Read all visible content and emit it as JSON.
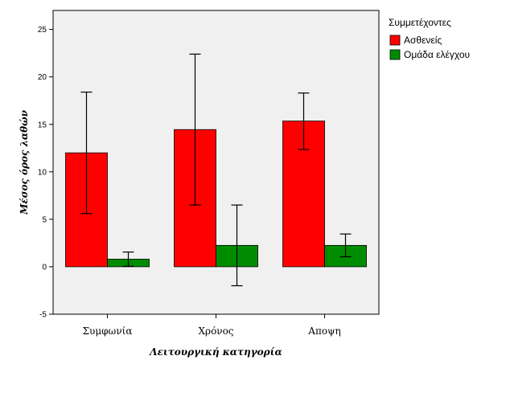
{
  "chart_data": {
    "type": "bar",
    "categories": [
      "Συμφωνία",
      "Χρόνος",
      "Αποψη"
    ],
    "series": [
      {
        "name": "Ασθενείς",
        "color": "#ff0000",
        "values": [
          12.0,
          14.45,
          15.35
        ],
        "error_low": [
          5.6,
          6.5,
          12.35
        ],
        "error_high": [
          18.4,
          22.4,
          18.3
        ]
      },
      {
        "name": "Ομάδα ελέγχου",
        "color": "#008c00",
        "values": [
          0.8,
          2.25,
          2.25
        ],
        "error_low": [
          0.05,
          -2.0,
          1.05
        ],
        "error_high": [
          1.55,
          6.5,
          3.45
        ]
      }
    ],
    "xlabel": "Λειτουργική κατηγορία",
    "ylabel": "Μέσος όρος λαθών",
    "ylim": [
      -5,
      27
    ],
    "yticks": [
      "-5",
      "0",
      "5",
      "10",
      "15",
      "20",
      "25"
    ],
    "legend_title": "Συμμετέχοντες",
    "legend_position": "top-right, outside plot",
    "plot_background": "#f0f0f0",
    "grid": false
  }
}
